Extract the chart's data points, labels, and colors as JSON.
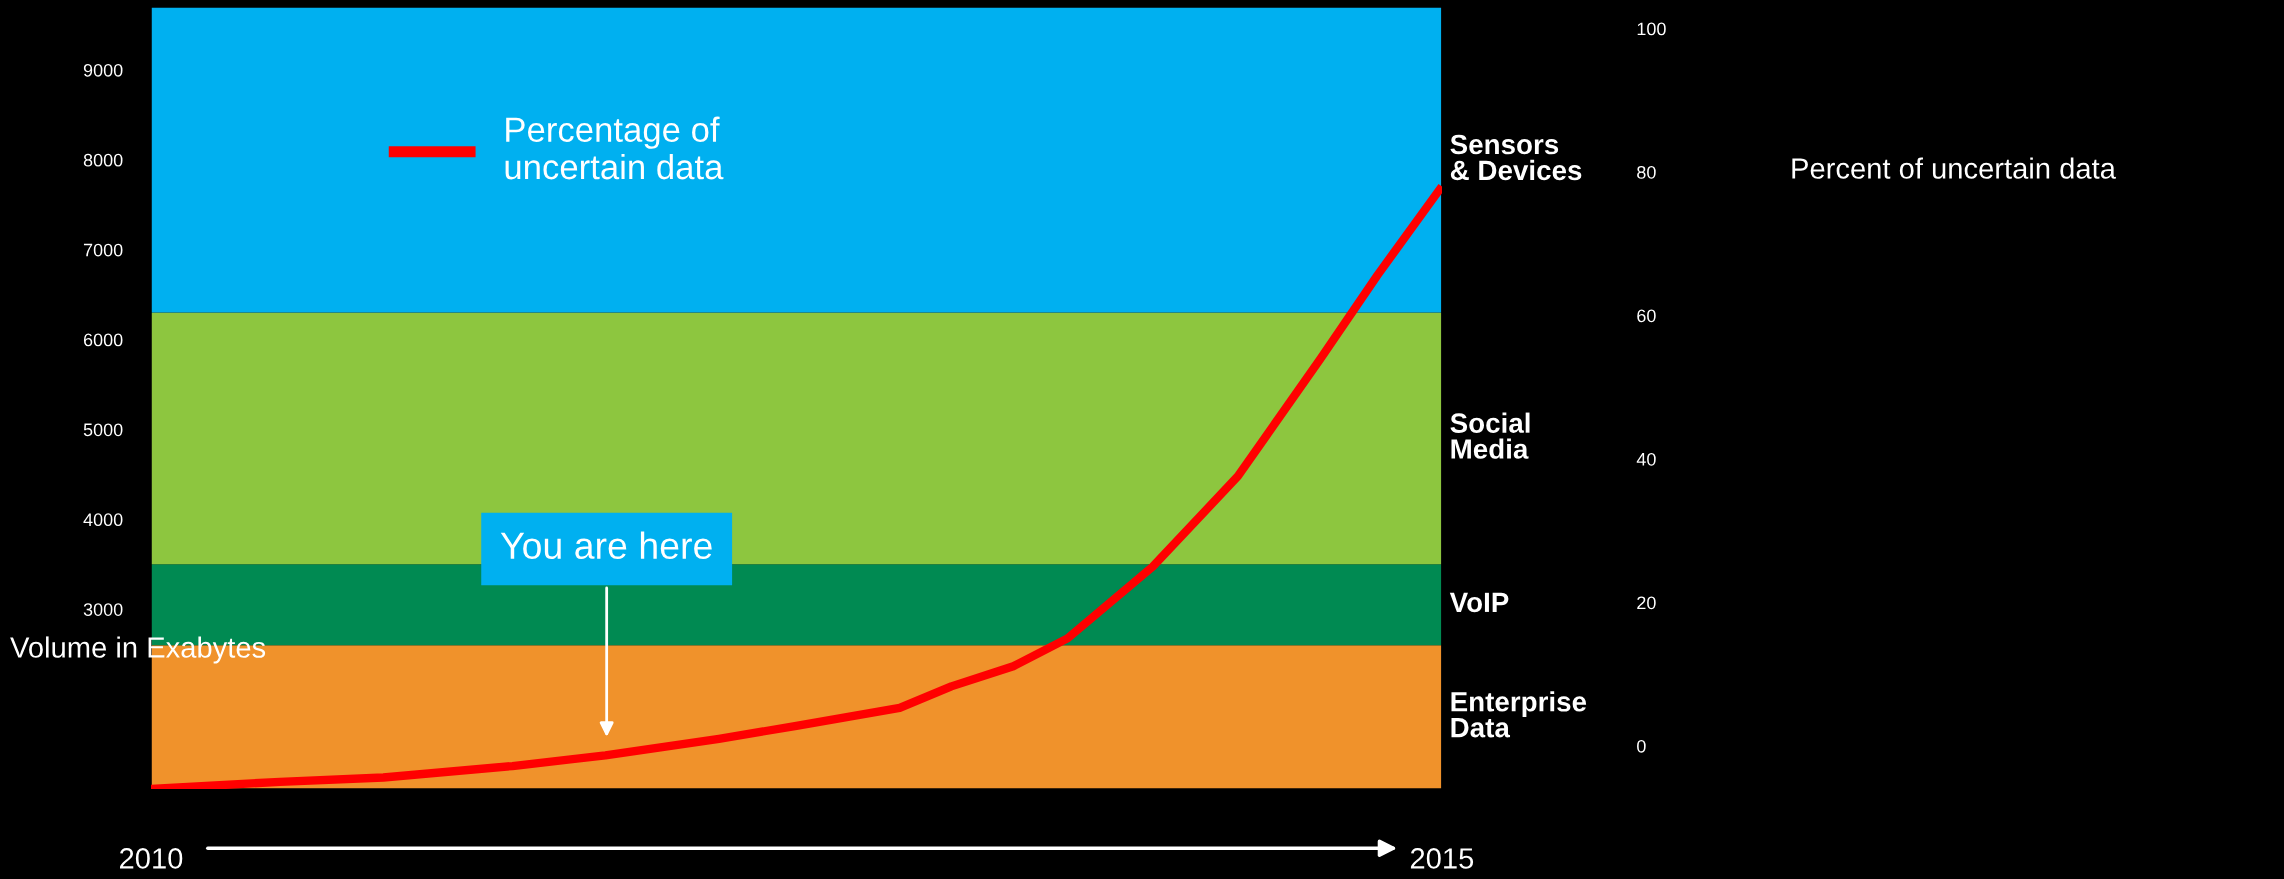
{
  "chart_data": {
    "type": "line",
    "ylabel": "Volume in Exabytes",
    "y2label": "Percent of uncertain data",
    "x": [
      2010,
      2010.5,
      2010.9,
      2011.4,
      2011.76,
      2012.2,
      2012.5,
      2012.9,
      2013.1,
      2013.34,
      2013.55,
      2013.88,
      2014.21,
      2014.53,
      2014.75,
      2015
    ],
    "series": [
      {
        "name": "Percentage of\nuncertain data",
        "color": "#ff0000",
        "axis": "y2",
        "values": [
          -6,
          -5,
          -4.4,
          -2.8,
          -1.3,
          1,
          2.8,
          5.3,
          8.3,
          11.1,
          15,
          25,
          37.6,
          54,
          65.6,
          78
        ]
      }
    ],
    "xlim": [
      2010,
      2015
    ],
    "xticks": [
      2010,
      2015
    ],
    "ylim": [
      1000,
      9700
    ],
    "yticks": [
      3000,
      4000,
      5000,
      6000,
      7000,
      8000,
      9000
    ],
    "y2lim": [
      -6,
      103
    ],
    "y2ticks": [
      0,
      20,
      40,
      60,
      80,
      100
    ],
    "bands": [
      {
        "axis": "y",
        "from": 1000,
        "to": 2600,
        "label": "Enterprise\nData",
        "color": "#f0922b"
      },
      {
        "axis": "y",
        "from": 2600,
        "to": 3500,
        "label": "VoIP",
        "color": "#008a52"
      },
      {
        "axis": "y",
        "from": 3500,
        "to": 6300,
        "label": "Social\nMedia",
        "color": "#8dc63f"
      },
      {
        "axis": "y",
        "from": 6300,
        "to": 9700,
        "label": "Sensors\n& Devices",
        "color": "#00b0f0"
      }
    ],
    "annotations": [
      "You are here"
    ],
    "legend": "top left"
  }
}
